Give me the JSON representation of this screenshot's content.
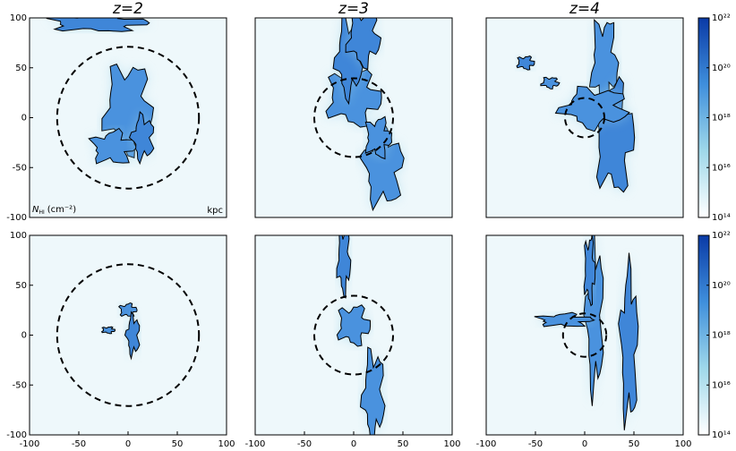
{
  "chart_data": [
    {
      "type": "map",
      "title": "z=2",
      "xlim": [
        -100,
        100
      ],
      "ylim": [
        -100,
        100
      ],
      "yticks": [
        -100,
        -50,
        0,
        50,
        100
      ],
      "circle_radius": 72,
      "annotation": {
        "symbol": "N",
        "subscript": "HI",
        "unit": "(cm⁻²)",
        "scale_unit": "kpc"
      }
    },
    {
      "type": "map",
      "title": "z=3",
      "xlim": [
        -100,
        100
      ],
      "ylim": [
        -100,
        100
      ],
      "circle_radius": 40
    },
    {
      "type": "map",
      "title": "z=4",
      "xlim": [
        -100,
        100
      ],
      "ylim": [
        -100,
        100
      ],
      "circle_radius": 20
    },
    {
      "type": "map",
      "xlim": [
        -100,
        100
      ],
      "ylim": [
        -100,
        100
      ],
      "xticks": [
        -100,
        -50,
        0,
        50,
        100
      ],
      "yticks": [
        -100,
        -50,
        0,
        50,
        100
      ],
      "circle_radius": 72
    },
    {
      "type": "map",
      "xlim": [
        -100,
        100
      ],
      "ylim": [
        -100,
        100
      ],
      "xticks": [
        -100,
        -50,
        0,
        50,
        100
      ],
      "circle_radius": 40
    },
    {
      "type": "map",
      "xlim": [
        -100,
        100
      ],
      "ylim": [
        -100,
        100
      ],
      "xticks": [
        -100,
        -50,
        0,
        50,
        100
      ],
      "circle_radius": 22
    },
    {
      "type": "colorbar",
      "ylim": [
        14,
        22
      ],
      "colors": [
        "#ffffff",
        "#9fd8ea",
        "#3f8fdc",
        "#0a3aa6"
      ],
      "yticks": [
        {
          "value": 14,
          "label": "10¹⁴"
        },
        {
          "value": 16,
          "label": "10¹⁶"
        },
        {
          "value": 18,
          "label": "10¹⁸"
        },
        {
          "value": 20,
          "label": "10²⁰"
        },
        {
          "value": 22,
          "label": "10²²"
        }
      ]
    },
    {
      "type": "colorbar",
      "ylim": [
        14,
        22
      ],
      "colors": [
        "#ffffff",
        "#9fd8ea",
        "#3f8fdc",
        "#0a3aa6"
      ],
      "yticks": [
        {
          "value": 14,
          "label": "10¹⁴"
        },
        {
          "value": 16,
          "label": "10¹⁶"
        },
        {
          "value": 18,
          "label": "10¹⁸"
        },
        {
          "value": 20,
          "label": "10²⁰"
        },
        {
          "value": 22,
          "label": "10²²"
        }
      ]
    }
  ]
}
